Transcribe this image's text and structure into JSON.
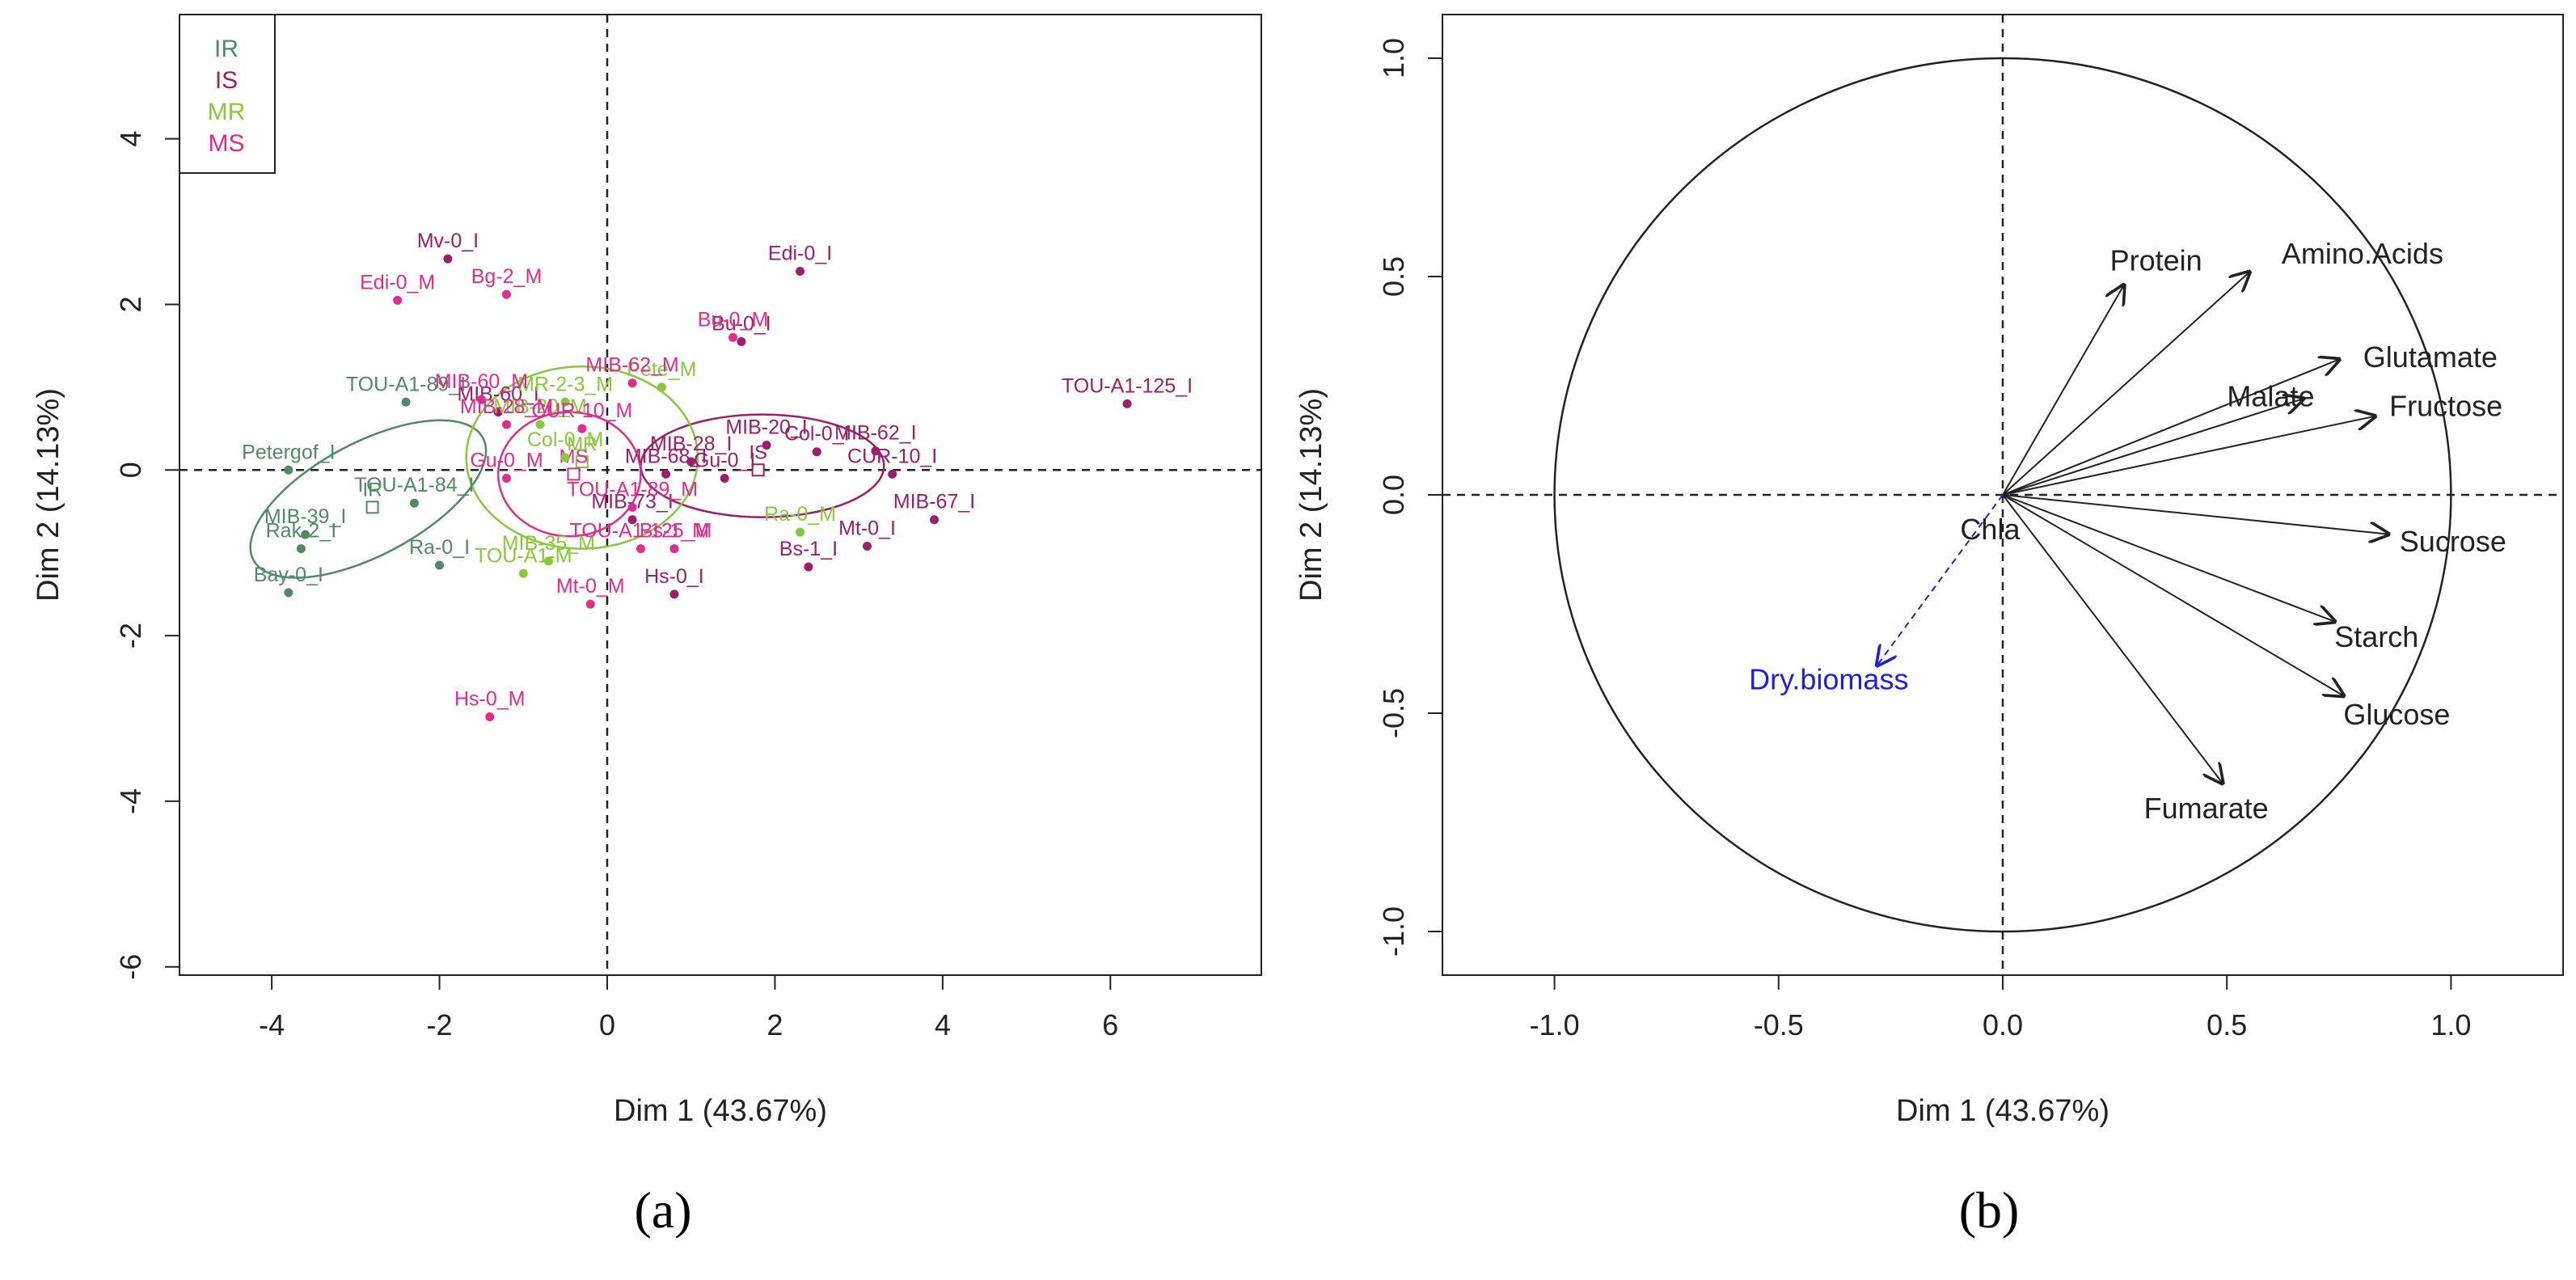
{
  "colors": {
    "IR": "#4f8a63",
    "IS": "#9c1e6c",
    "MR": "#88c93a",
    "MS": "#e22b8f",
    "axis": "#000000",
    "supplementary": "#1f1fe0"
  },
  "captions": {
    "a": "(a)",
    "b": "(b)"
  },
  "chart_data": [
    {
      "type": "scatter",
      "title": "",
      "xlabel": "Dim 1 (43.67%)",
      "ylabel": "Dim 2 (14.13%)",
      "xlim": [
        -5.1,
        7.8
      ],
      "ylim": [
        -6.1,
        5.5
      ],
      "xticks": [
        -4,
        -2,
        0,
        2,
        4,
        6
      ],
      "yticks": [
        -6,
        -4,
        -2,
        0,
        2,
        4
      ],
      "xtick_labels": [
        "-4",
        "-2",
        "0",
        "2",
        "4",
        "6"
      ],
      "ytick_labels": [
        "-6",
        "-4",
        "-2",
        "0",
        "2",
        "4"
      ],
      "legend": {
        "position": "top-left",
        "entries": [
          {
            "group": "IR",
            "label": "IR"
          },
          {
            "group": "IS",
            "label": "IS"
          },
          {
            "group": "MR",
            "label": "MR"
          },
          {
            "group": "MS",
            "label": "MS"
          }
        ]
      },
      "points": [
        {
          "label": "Petergof_I",
          "group": "IR",
          "x": -3.8,
          "y": 0.0
        },
        {
          "label": "MIB-39_I",
          "group": "IR",
          "x": -3.6,
          "y": -0.78
        },
        {
          "label": "Rak-2_I",
          "group": "IR",
          "x": -3.65,
          "y": -0.95
        },
        {
          "label": "Bay-0_I",
          "group": "IR",
          "x": -3.8,
          "y": -1.48
        },
        {
          "label": "TOU-A1-84_I",
          "group": "IR",
          "x": -2.3,
          "y": -0.4
        },
        {
          "label": "Ra-0_I",
          "group": "IR",
          "x": -2.0,
          "y": -1.15
        },
        {
          "label": "TOU-A1-89_I",
          "group": "IR",
          "x": -2.4,
          "y": 0.82
        },
        {
          "label": "Edi-0_I",
          "group": "IS",
          "x": 2.3,
          "y": 2.4
        },
        {
          "label": "Bu-0_I",
          "group": "IS",
          "x": 1.6,
          "y": 1.55
        },
        {
          "label": "TOU-A1-125_I",
          "group": "IS",
          "x": 6.2,
          "y": 0.8
        },
        {
          "label": "MIB-20_I",
          "group": "IS",
          "x": 1.9,
          "y": 0.3
        },
        {
          "label": "Col-0_I",
          "group": "IS",
          "x": 2.5,
          "y": 0.22
        },
        {
          "label": "MIB-62_I",
          "group": "IS",
          "x": 3.2,
          "y": 0.23
        },
        {
          "label": "CUR-10_I",
          "group": "IS",
          "x": 3.4,
          "y": -0.05
        },
        {
          "label": "MIB-67_I",
          "group": "IS",
          "x": 3.9,
          "y": -0.6
        },
        {
          "label": "Mt-0_I",
          "group": "IS",
          "x": 3.1,
          "y": -0.92
        },
        {
          "label": "Bs-1_I",
          "group": "IS",
          "x": 2.4,
          "y": -1.17
        },
        {
          "label": "MIB-28_I",
          "group": "IS",
          "x": 1.0,
          "y": 0.1
        },
        {
          "label": "Gu-0_I",
          "group": "IS",
          "x": 1.4,
          "y": -0.1
        },
        {
          "label": "MIB-68_I",
          "group": "IS",
          "x": 0.7,
          "y": -0.05
        },
        {
          "label": "Hs-0_I",
          "group": "IS",
          "x": 0.8,
          "y": -1.5
        },
        {
          "label": "Mv-0_I",
          "group": "IS",
          "x": -1.9,
          "y": 2.55
        },
        {
          "label": "MIB-73_I",
          "group": "IS",
          "x": 0.3,
          "y": -0.6
        },
        {
          "label": "MIB-60_I",
          "group": "IS",
          "x": -1.3,
          "y": 0.7
        },
        {
          "label": "MR-2-3_M",
          "group": "MR",
          "x": -0.5,
          "y": 0.82
        },
        {
          "label": "Pete_M",
          "group": "MR",
          "x": 0.65,
          "y": 1.0
        },
        {
          "label": "MIB-20_M",
          "group": "MR",
          "x": -0.8,
          "y": 0.55
        },
        {
          "label": "MIB-35_M",
          "group": "MR",
          "x": -0.7,
          "y": -1.1
        },
        {
          "label": "TOU-A1-M",
          "group": "MR",
          "x": -1.0,
          "y": -1.25
        },
        {
          "label": "Ra-0_M",
          "group": "MR",
          "x": 2.3,
          "y": -0.75
        },
        {
          "label": "Col-0_M",
          "group": "MR",
          "x": -0.5,
          "y": 0.15
        },
        {
          "label": "Edi-0_M",
          "group": "MS",
          "x": -2.5,
          "y": 2.05
        },
        {
          "label": "Bg-2_M",
          "group": "MS",
          "x": -1.2,
          "y": 2.12
        },
        {
          "label": "Bu-0_M",
          "group": "MS",
          "x": 1.5,
          "y": 1.6
        },
        {
          "label": "MIB-60_M",
          "group": "MS",
          "x": -1.5,
          "y": 0.85
        },
        {
          "label": "MIB-62_M",
          "group": "MS",
          "x": 0.3,
          "y": 1.05
        },
        {
          "label": "MIB-28_M",
          "group": "MS",
          "x": -1.2,
          "y": 0.55
        },
        {
          "label": "CUR-10_M",
          "group": "MS",
          "x": -0.3,
          "y": 0.5
        },
        {
          "label": "Gu-0_M",
          "group": "MS",
          "x": -1.2,
          "y": -0.1
        },
        {
          "label": "TOU-A1-125_M",
          "group": "MS",
          "x": 0.4,
          "y": -0.95
        },
        {
          "label": "Mt-0_M",
          "group": "MS",
          "x": -0.2,
          "y": -1.62
        },
        {
          "label": "Bs-1_M",
          "group": "MS",
          "x": 0.8,
          "y": -0.95
        },
        {
          "label": "Hs-0_M",
          "group": "MS",
          "x": -1.4,
          "y": -2.98
        },
        {
          "label": "TOU-A1-89_M",
          "group": "MS",
          "x": 0.3,
          "y": -0.45
        }
      ],
      "centroids": [
        {
          "label": "IR",
          "group": "IR",
          "x": -2.8,
          "y": -0.45
        },
        {
          "label": "IS",
          "group": "IS",
          "x": 1.8,
          "y": 0.0
        },
        {
          "label": "MR",
          "group": "MR",
          "x": -0.3,
          "y": 0.1
        },
        {
          "label": "MS",
          "group": "MS",
          "x": -0.4,
          "y": -0.05
        }
      ],
      "ellipses": [
        {
          "group": "IR",
          "cx": -2.85,
          "cy": -0.35,
          "a": 1.55,
          "b": 0.68,
          "angle_deg": 28
        },
        {
          "group": "IS",
          "cx": 1.85,
          "cy": 0.05,
          "a": 1.45,
          "b": 0.62,
          "angle_deg": 0
        },
        {
          "group": "MR",
          "cx": -0.3,
          "cy": 0.15,
          "a": 1.38,
          "b": 1.1,
          "angle_deg": 0
        },
        {
          "group": "MS",
          "cx": -0.45,
          "cy": -0.05,
          "a": 0.85,
          "b": 0.75,
          "angle_deg": 0
        }
      ]
    },
    {
      "type": "line",
      "subtype": "correlation-circle",
      "title": "",
      "xlabel": "Dim 1 (43.67%)",
      "ylabel": "Dim 2 (14.13%)",
      "xlim": [
        -1.25,
        1.25
      ],
      "ylim": [
        -1.1,
        1.1
      ],
      "xticks": [
        -1.0,
        -0.5,
        0.0,
        0.5,
        1.0
      ],
      "yticks": [
        -1.0,
        -0.5,
        0.0,
        0.5,
        1.0
      ],
      "xtick_labels": [
        "-1.0",
        "-0.5",
        "0.0",
        "0.5",
        "1.0"
      ],
      "ytick_labels": [
        "-1.0",
        "-0.5",
        "0.0",
        "0.5",
        "1.0"
      ],
      "vectors": [
        {
          "label": "Protein",
          "x": 0.27,
          "y": 0.48
        },
        {
          "label": "Amino.Acids",
          "x": 0.55,
          "y": 0.51
        },
        {
          "label": "Glutamate",
          "x": 0.75,
          "y": 0.31
        },
        {
          "label": "Malate",
          "x": 0.67,
          "y": 0.22
        },
        {
          "label": "Fructose",
          "x": 0.83,
          "y": 0.18
        },
        {
          "label": "Sucrose",
          "x": 0.86,
          "y": -0.09
        },
        {
          "label": "Starch",
          "x": 0.74,
          "y": -0.29
        },
        {
          "label": "Glucose",
          "x": 0.76,
          "y": -0.46
        },
        {
          "label": "Fumarate",
          "x": 0.49,
          "y": -0.66
        },
        {
          "label": "Chla",
          "x": -0.01,
          "y": -0.01
        }
      ],
      "supplementary_vectors": [
        {
          "label": "Dry.biomass",
          "x": -0.28,
          "y": -0.39
        }
      ]
    }
  ]
}
